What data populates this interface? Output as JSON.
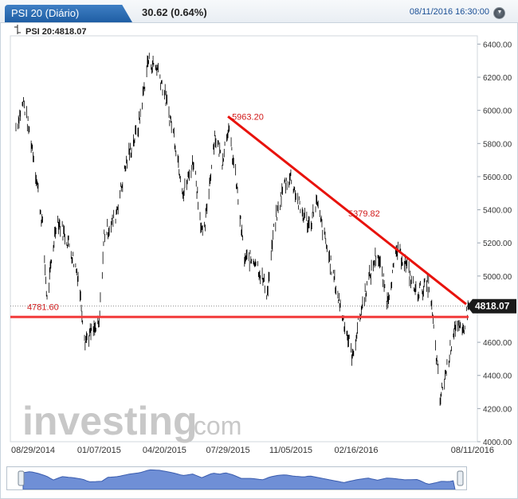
{
  "header": {
    "title": "PSI 20 (Diário)",
    "change": "30.62 (0.64%)",
    "datetime": "08/11/2016 16:30:00",
    "close_icon": "circle-chevron-down-icon"
  },
  "subheader": {
    "label": "PSI 20:4818.07",
    "icon": "bar-tick-icon"
  },
  "watermark": {
    "text_bold": "investing",
    "text_light": ".com"
  },
  "colors": {
    "price": "#000000",
    "trend": "#e8120c",
    "support": "#f23a3a",
    "label_red": "#d11a1a",
    "badge": "#1a1a1a",
    "navigator_fill": "#6f8fd6",
    "title_bg": "#2a6ab3"
  },
  "chart_data": {
    "type": "line",
    "title": "PSI 20 (Diário)",
    "x_tick_labels": [
      "08/29/2014",
      "01/07/2015",
      "04/20/2015",
      "07/29/2015",
      "11/05/2015",
      "02/16/2016",
      "08/11/2016"
    ],
    "y_tick_labels": [
      "4000.00",
      "4200.00",
      "4400.00",
      "4600.00",
      "4800.00",
      "5000.00",
      "5200.00",
      "5400.00",
      "5600.00",
      "5800.00",
      "6000.00",
      "6200.00",
      "6400.00"
    ],
    "ylim": [
      4000,
      6450
    ],
    "grid": false,
    "last_value": "4818.07",
    "series": [
      {
        "name": "PSI 20",
        "x": [
          "2014-08-29",
          "2014-09-10",
          "2014-09-25",
          "2014-10-10",
          "2014-10-17",
          "2014-11-01",
          "2014-11-20",
          "2014-12-05",
          "2014-12-16",
          "2015-01-07",
          "2015-01-15",
          "2015-02-01",
          "2015-02-20",
          "2015-03-10",
          "2015-03-25",
          "2015-04-10",
          "2015-04-20",
          "2015-05-05",
          "2015-05-20",
          "2015-06-05",
          "2015-06-20",
          "2015-07-08",
          "2015-07-20",
          "2015-07-29",
          "2015-08-10",
          "2015-08-24",
          "2015-09-10",
          "2015-09-29",
          "2015-10-10",
          "2015-10-25",
          "2015-11-05",
          "2015-11-20",
          "2015-12-05",
          "2015-12-15",
          "2016-01-05",
          "2016-01-20",
          "2016-02-11",
          "2016-02-16",
          "2016-03-01",
          "2016-03-20",
          "2016-04-05",
          "2016-04-20",
          "2016-05-01",
          "2016-05-20",
          "2016-06-10",
          "2016-06-24",
          "2016-06-27",
          "2016-07-08",
          "2016-07-20",
          "2016-08-01",
          "2016-08-11"
        ],
        "y": [
          5900,
          6050,
          5750,
          5300,
          4850,
          5350,
          5200,
          5000,
          4620,
          4700,
          5250,
          5350,
          5700,
          5900,
          6300,
          6250,
          6100,
          5850,
          5500,
          5700,
          5200,
          5850,
          5700,
          5900,
          5600,
          5100,
          5100,
          4900,
          5300,
          5550,
          5600,
          5400,
          5300,
          5450,
          5100,
          4850,
          4500,
          4650,
          4900,
          5150,
          4850,
          5150,
          5100,
          4900,
          4950,
          4400,
          4250,
          4450,
          4700,
          4650,
          4818
        ]
      }
    ],
    "annotations": [
      {
        "type": "trendline",
        "from_date": "2015-07-29",
        "from_value": 5963.2,
        "to_date": "2016-08-11",
        "to_value": 4830
      },
      {
        "type": "horizontal",
        "value": 4781.6
      },
      {
        "type": "label",
        "text": "5963.20",
        "date": "2015-07-29",
        "value": 5963.2
      },
      {
        "type": "label",
        "text": "5379.82",
        "date": "2016-02-16",
        "value": 5379.82
      },
      {
        "type": "label",
        "text": "4781.60",
        "date": "2014-08-29",
        "value": 4781.6
      }
    ]
  }
}
